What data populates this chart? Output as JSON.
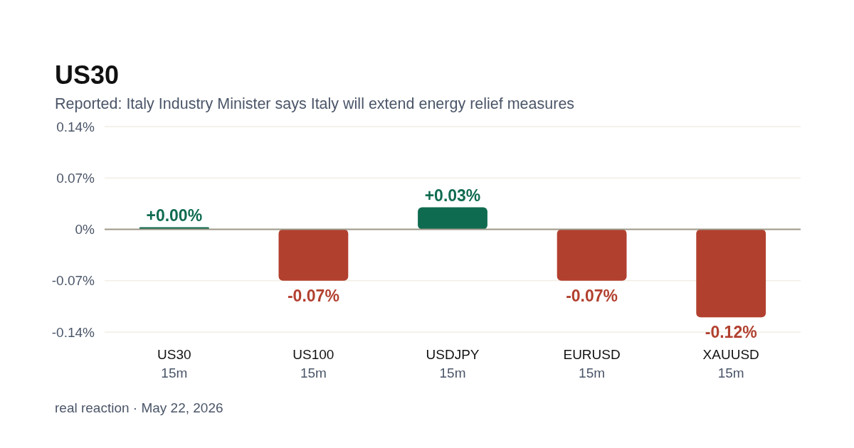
{
  "chart_data": {
    "type": "bar",
    "title": "US30",
    "subtitle": "Reported: Italy Industry Minister says Italy will extend energy relief measures",
    "categories": [
      "US30\n15m",
      "US100\n15m",
      "USDJPY\n15m",
      "EURUSD\n15m",
      "XAUUSD\n15m"
    ],
    "values": [
      0.0,
      -0.07,
      0.03,
      -0.07,
      -0.12
    ],
    "colors": [
      "#0f6b50",
      "#b2402f",
      "#0f6b50",
      "#b2402f",
      "#b2402f"
    ],
    "value_labels": [
      "+0.00%",
      "-0.07%",
      "+0.03%",
      "-0.07%",
      "-0.12%"
    ],
    "ylim": [
      -0.14,
      0.14
    ],
    "yticks": [
      {
        "value": 0.14,
        "label": "0.14%"
      },
      {
        "value": 0.07,
        "label": "0.07%"
      },
      {
        "value": 0,
        "label": "0%"
      },
      {
        "value": -0.07,
        "label": "-0.07%"
      },
      {
        "value": -0.14,
        "label": "-0.14%"
      }
    ],
    "grid": "y",
    "annotations": [
      "real reaction · May 22, 2026"
    ]
  }
}
